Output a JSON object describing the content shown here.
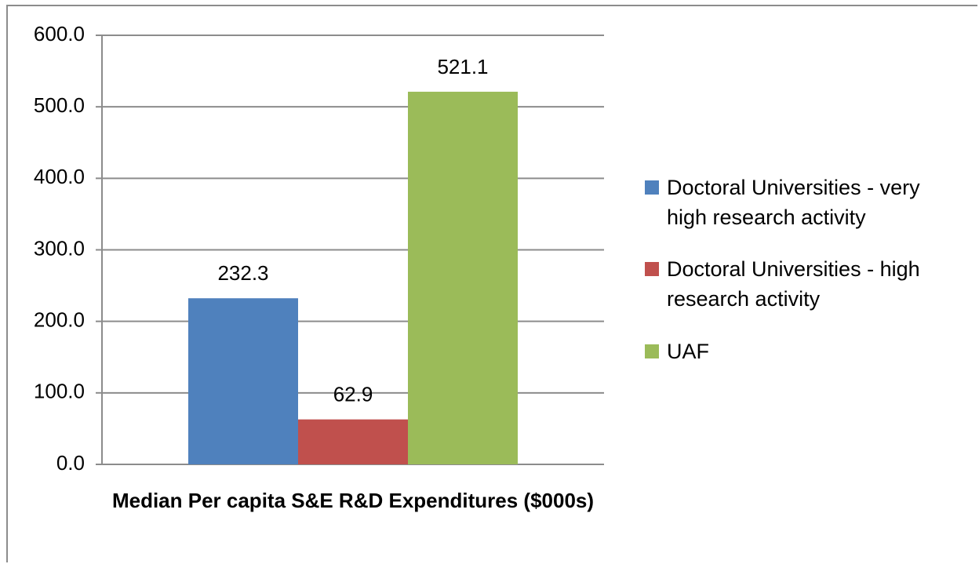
{
  "chart_data": {
    "type": "bar",
    "categories": [
      "Median Per capita S&E R&D Expenditures ($000s)"
    ],
    "series": [
      {
        "name": "Doctoral Universities - very high research activity",
        "color": "#4f81bd",
        "values": [
          232.3
        ]
      },
      {
        "name": "Doctoral Universities - high research activity",
        "color": "#c0504d",
        "values": [
          62.9
        ]
      },
      {
        "name": "UAF",
        "color": "#9bbb59",
        "values": [
          521.1
        ]
      }
    ],
    "ylim": [
      0,
      600
    ],
    "yticks": [
      {
        "value": 0,
        "label": "0.0"
      },
      {
        "value": 100,
        "label": "100.0"
      },
      {
        "value": 200,
        "label": "200.0"
      },
      {
        "value": 300,
        "label": "300.0"
      },
      {
        "value": 400,
        "label": "400.0"
      },
      {
        "value": 500,
        "label": "500.0"
      },
      {
        "value": 600,
        "label": "600.0"
      }
    ],
    "grid": true,
    "legend": "right"
  }
}
